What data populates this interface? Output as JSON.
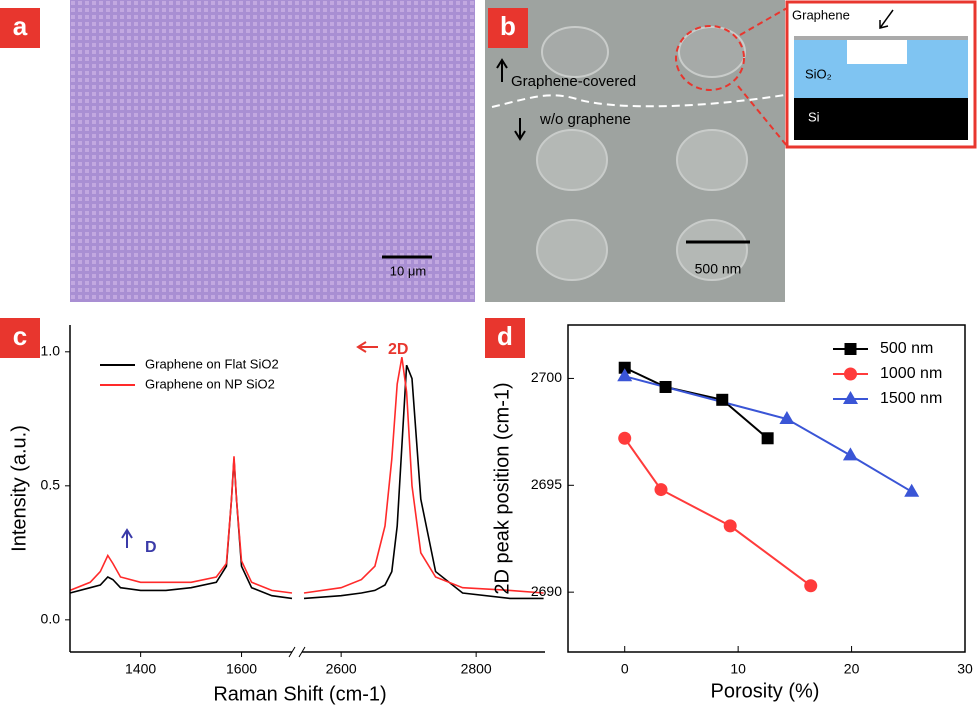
{
  "image_panels": {
    "a": {
      "label": "a",
      "scale_bar": "10 μm"
    },
    "b": {
      "label": "b",
      "scale_bar": "500 nm",
      "upper_note": "Graphene-covered",
      "lower_note": "w/o graphene",
      "inset": {
        "top_layer": "Graphene",
        "middle_layer": "SiO₂",
        "bottom_layer": "Si"
      }
    }
  },
  "chart_data": [
    {
      "type": "line",
      "label": "c",
      "xlabel": "Raman Shift (cm-1)",
      "ylabel": "Intensity (a.u.)",
      "x": [
        1260,
        1300,
        1320,
        1335,
        1345,
        1360,
        1400,
        1450,
        1500,
        1550,
        1570,
        1580,
        1585,
        1590,
        1600,
        1620,
        1660,
        1700,
        2100,
        2545,
        2600,
        2630,
        2650,
        2665,
        2675,
        2683,
        2690,
        2697,
        2705,
        2718,
        2740,
        2780,
        2850,
        2900
      ],
      "series": [
        {
          "name": "Graphene on Flat SiO2",
          "color": "#000000",
          "values": [
            0.1,
            0.12,
            0.13,
            0.16,
            0.15,
            0.12,
            0.11,
            0.11,
            0.12,
            0.14,
            0.2,
            0.45,
            0.6,
            0.45,
            0.2,
            0.12,
            0.09,
            0.08,
            null,
            0.08,
            0.09,
            0.1,
            0.11,
            0.13,
            0.18,
            0.35,
            0.65,
            0.95,
            0.9,
            0.45,
            0.18,
            0.1,
            0.08,
            0.08
          ]
        },
        {
          "name": "Graphene on NP SiO2",
          "color": "#ff2a2a",
          "values": [
            0.11,
            0.14,
            0.18,
            0.24,
            0.21,
            0.16,
            0.14,
            0.14,
            0.14,
            0.16,
            0.21,
            0.45,
            0.61,
            0.45,
            0.22,
            0.14,
            0.11,
            0.1,
            null,
            0.1,
            0.12,
            0.15,
            0.2,
            0.35,
            0.6,
            0.88,
            0.98,
            0.85,
            0.5,
            0.25,
            0.16,
            0.12,
            0.11,
            0.1
          ]
        }
      ],
      "xlim": [
        1260,
        2902
      ],
      "xbreak": [
        1700,
        2542
      ],
      "xticks": [
        1400,
        1600,
        2600,
        2800
      ],
      "ylim": [
        -0.12,
        1.1
      ],
      "yticks": [
        {
          "value": 0,
          "label": "0.0"
        },
        0.5,
        {
          "value": 1,
          "label": "1.0"
        }
      ],
      "annotations": [
        "D",
        "2D"
      ]
    },
    {
      "type": "line",
      "label": "d",
      "xlabel": "Porosity (%)",
      "ylabel": "2D peak position (cm-1)",
      "series": [
        {
          "name": "500 nm",
          "color": "#000000",
          "marker": "square",
          "x": [
            0,
            3.6,
            8.6,
            12.6
          ],
          "values": [
            2700.5,
            2699.6,
            2699.0,
            2697.2
          ]
        },
        {
          "name": "1000 nm",
          "color": "#ff3b3b",
          "marker": "circle",
          "x": [
            0,
            3.2,
            9.3,
            16.4
          ],
          "values": [
            2697.2,
            2694.8,
            2693.1,
            2690.3
          ]
        },
        {
          "name": "1500 nm",
          "color": "#3a55d6",
          "marker": "triangle",
          "x": [
            0,
            14.3,
            19.9,
            25.3
          ],
          "values": [
            2700.1,
            2698.1,
            2696.4,
            2694.7
          ]
        }
      ],
      "xlim": [
        -5,
        30
      ],
      "xticks": [
        0,
        10,
        20,
        30
      ],
      "ylim": [
        2687.2,
        2702.5
      ],
      "yticks": [
        2690,
        2695,
        2700
      ],
      "box": true,
      "legend": "upper-right"
    }
  ]
}
